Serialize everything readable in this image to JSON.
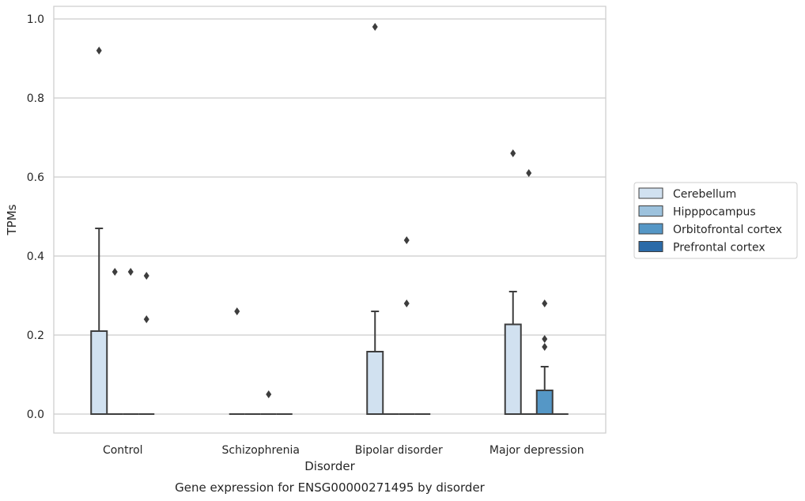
{
  "caption": "Gene expression for ENSG00000271495 by disorder",
  "chart_data": {
    "type": "box",
    "xlabel": "Disorder",
    "ylabel": "TPMs",
    "categories": [
      "Control",
      "Schizophrenia",
      "Bipolar disorder",
      "Major depression"
    ],
    "ylim": [
      -0.048,
      1.03
    ],
    "yticks": [
      0.0,
      0.2,
      0.4,
      0.6,
      0.8,
      1.0
    ],
    "ytick_labels": [
      "0.0",
      "0.2",
      "0.4",
      "0.6",
      "0.8",
      "1.0"
    ],
    "grid": true,
    "legend_position": "right",
    "series": [
      {
        "name": "Cerebellum",
        "color": "#d1e1f0",
        "boxes": [
          {
            "q1": 0.0,
            "median": 0.0,
            "q3": 0.21,
            "whisker_low": 0.0,
            "whisker_high": 0.47,
            "outliers": [
              0.92
            ]
          },
          {
            "q1": 0.0,
            "median": 0.0,
            "q3": 0.0,
            "whisker_low": 0.0,
            "whisker_high": 0.0,
            "outliers": [
              0.26
            ]
          },
          {
            "q1": 0.0,
            "median": 0.0,
            "q3": 0.158,
            "whisker_low": 0.0,
            "whisker_high": 0.26,
            "outliers": [
              0.98
            ]
          },
          {
            "q1": 0.0,
            "median": 0.0,
            "q3": 0.227,
            "whisker_low": 0.0,
            "whisker_high": 0.31,
            "outliers": [
              0.66
            ]
          }
        ]
      },
      {
        "name": "Hipppocampus",
        "color": "#9dc2dd",
        "boxes": [
          {
            "q1": 0.0,
            "median": 0.0,
            "q3": 0.0,
            "whisker_low": 0.0,
            "whisker_high": 0.0,
            "outliers": [
              0.36
            ]
          },
          {
            "q1": 0.0,
            "median": 0.0,
            "q3": 0.0,
            "whisker_low": 0.0,
            "whisker_high": 0.0,
            "outliers": []
          },
          {
            "q1": 0.0,
            "median": 0.0,
            "q3": 0.0,
            "whisker_low": 0.0,
            "whisker_high": 0.0,
            "outliers": []
          },
          {
            "q1": 0.0,
            "median": 0.0,
            "q3": 0.0,
            "whisker_low": 0.0,
            "whisker_high": 0.0,
            "outliers": [
              0.61
            ]
          }
        ]
      },
      {
        "name": "Orbitofrontal cortex",
        "color": "#5597c6",
        "boxes": [
          {
            "q1": 0.0,
            "median": 0.0,
            "q3": 0.0,
            "whisker_low": 0.0,
            "whisker_high": 0.0,
            "outliers": [
              0.36
            ]
          },
          {
            "q1": 0.0,
            "median": 0.0,
            "q3": 0.0,
            "whisker_low": 0.0,
            "whisker_high": 0.0,
            "outliers": [
              0.05
            ]
          },
          {
            "q1": 0.0,
            "median": 0.0,
            "q3": 0.0,
            "whisker_low": 0.0,
            "whisker_high": 0.0,
            "outliers": [
              0.44,
              0.28
            ]
          },
          {
            "q1": 0.0,
            "median": 0.0,
            "q3": 0.06,
            "whisker_low": 0.0,
            "whisker_high": 0.12,
            "outliers": [
              0.28,
              0.19,
              0.17
            ]
          }
        ]
      },
      {
        "name": "Prefrontal cortex",
        "color": "#2b6ba8",
        "boxes": [
          {
            "q1": 0.0,
            "median": 0.0,
            "q3": 0.0,
            "whisker_low": 0.0,
            "whisker_high": 0.0,
            "outliers": [
              0.35,
              0.24
            ]
          },
          {
            "q1": 0.0,
            "median": 0.0,
            "q3": 0.0,
            "whisker_low": 0.0,
            "whisker_high": 0.0,
            "outliers": []
          },
          {
            "q1": 0.0,
            "median": 0.0,
            "q3": 0.0,
            "whisker_low": 0.0,
            "whisker_high": 0.0,
            "outliers": []
          },
          {
            "q1": 0.0,
            "median": 0.0,
            "q3": 0.0,
            "whisker_low": 0.0,
            "whisker_high": 0.0,
            "outliers": []
          }
        ]
      }
    ]
  }
}
